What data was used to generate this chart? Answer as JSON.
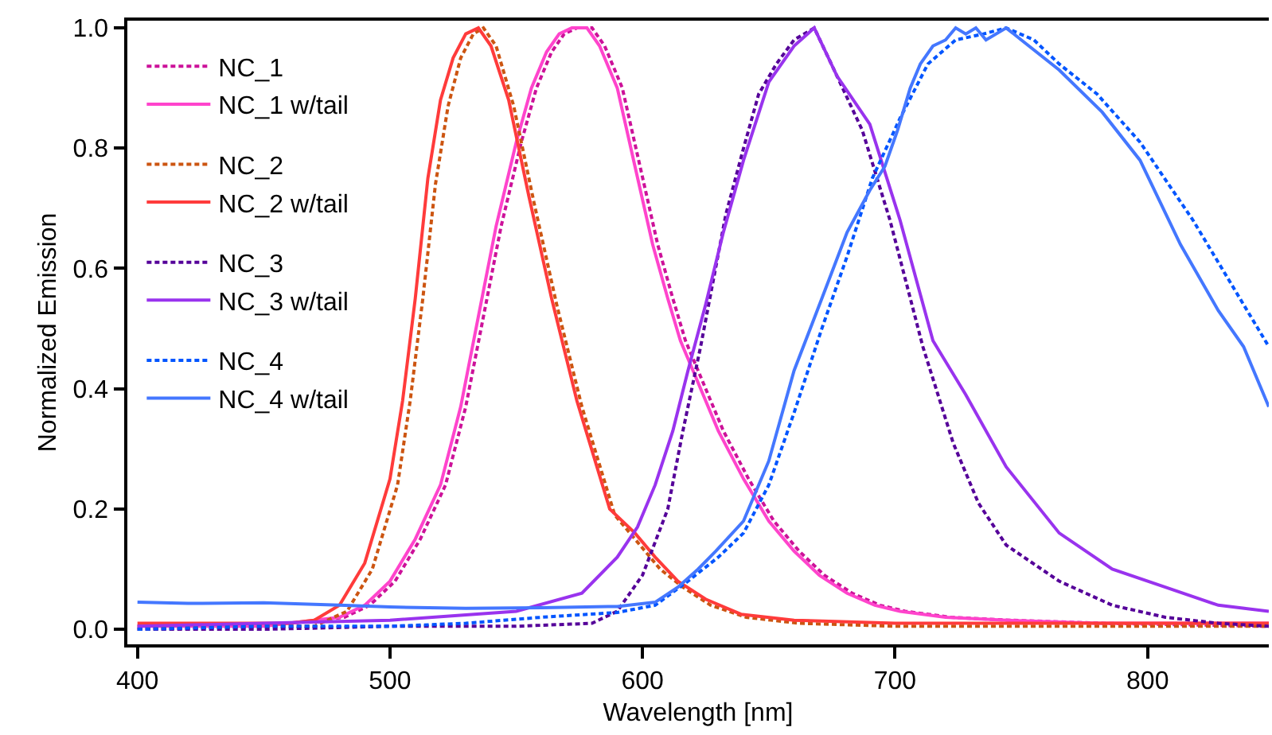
{
  "chart_data": {
    "type": "line",
    "xlabel": "Wavelength [nm]",
    "ylabel": "Normalized Emission",
    "xlim": [
      396,
      848
    ],
    "ylim": [
      -0.025,
      1.012
    ],
    "xticks": [
      400,
      500,
      600,
      700,
      800
    ],
    "yticks": [
      {
        "value": 0,
        "label": "0.0"
      },
      {
        "value": 0.2,
        "label": "0.2"
      },
      {
        "value": 0.4,
        "label": "0.4"
      },
      {
        "value": 0.6,
        "label": "0.6"
      },
      {
        "value": 0.8,
        "label": "0.8"
      },
      {
        "value": 1,
        "label": "1.0"
      }
    ],
    "legend": "top left",
    "marker": "none",
    "series": [
      {
        "name": "NC_1",
        "color": "#cc1199",
        "line_style": "dotted",
        "x": [
          400,
          450,
          482,
          492,
          502,
          512,
          522,
          530,
          537,
          544,
          552,
          558,
          564,
          569,
          574,
          580,
          585,
          592,
          599,
          606,
          612,
          617,
          623,
          632,
          642,
          652,
          662,
          672,
          683,
          694,
          704,
          722,
          746,
          782,
          848
        ],
        "values": [
          0.0,
          0.005,
          0.02,
          0.04,
          0.08,
          0.15,
          0.24,
          0.37,
          0.52,
          0.67,
          0.81,
          0.9,
          0.96,
          0.99,
          1.0,
          1.0,
          0.97,
          0.9,
          0.77,
          0.64,
          0.55,
          0.48,
          0.42,
          0.33,
          0.25,
          0.18,
          0.13,
          0.09,
          0.06,
          0.04,
          0.03,
          0.02,
          0.015,
          0.01,
          0.005
        ]
      },
      {
        "name": "NC_1 w/tail",
        "color": "#ff44cc",
        "line_style": "solid",
        "x": [
          400,
          450,
          480,
          490,
          500,
          510,
          520,
          528,
          535,
          542,
          550,
          556,
          562,
          567,
          572,
          578,
          583,
          590,
          597,
          604,
          610,
          615,
          621,
          630,
          640,
          650,
          660,
          670,
          681,
          692,
          702,
          720,
          744,
          780,
          848
        ],
        "values": [
          0.005,
          0.005,
          0.02,
          0.04,
          0.08,
          0.15,
          0.24,
          0.37,
          0.52,
          0.67,
          0.81,
          0.9,
          0.96,
          0.99,
          1.0,
          1.0,
          0.97,
          0.9,
          0.77,
          0.64,
          0.55,
          0.48,
          0.42,
          0.33,
          0.25,
          0.18,
          0.13,
          0.09,
          0.06,
          0.04,
          0.03,
          0.02,
          0.015,
          0.01,
          0.01
        ]
      },
      {
        "name": "NC_2",
        "color": "#cc5511",
        "line_style": "dotted",
        "x": [
          400,
          470,
          483,
          493,
          503,
          508,
          513,
          518,
          523,
          528,
          533,
          537,
          542,
          549,
          557,
          566,
          576,
          589,
          599,
          607,
          616,
          627,
          641,
          662,
          700,
          750,
          800,
          848
        ],
        "values": [
          0.005,
          0.005,
          0.03,
          0.1,
          0.24,
          0.38,
          0.55,
          0.74,
          0.87,
          0.95,
          0.99,
          1.0,
          0.97,
          0.87,
          0.71,
          0.54,
          0.37,
          0.19,
          0.14,
          0.1,
          0.07,
          0.04,
          0.02,
          0.01,
          0.005,
          0.005,
          0.005,
          0.005
        ]
      },
      {
        "name": "NC_2 w/tail",
        "color": "#ff3b3b",
        "line_style": "solid",
        "x": [
          400,
          430,
          460,
          470,
          480,
          490,
          500,
          505,
          510,
          515,
          520,
          525,
          530,
          535,
          540,
          547,
          555,
          564,
          574,
          587,
          597,
          605,
          614,
          625,
          639,
          660,
          700,
          750,
          800,
          848
        ],
        "values": [
          0.01,
          0.01,
          0.01,
          0.015,
          0.04,
          0.11,
          0.25,
          0.38,
          0.55,
          0.75,
          0.88,
          0.95,
          0.99,
          1.0,
          0.97,
          0.88,
          0.72,
          0.55,
          0.38,
          0.2,
          0.16,
          0.12,
          0.08,
          0.05,
          0.025,
          0.015,
          0.01,
          0.01,
          0.01,
          0.01
        ]
      },
      {
        "name": "NC_3",
        "color": "#550099",
        "line_style": "dotted",
        "x": [
          400,
          450,
          500,
          550,
          580,
          590,
          600,
          610,
          616,
          623,
          628,
          633,
          640,
          646,
          653,
          660,
          668,
          677,
          687,
          698,
          711,
          723,
          733,
          744,
          765,
          786,
          807,
          828,
          848
        ],
        "values": [
          0.0,
          0.0,
          0.005,
          0.005,
          0.01,
          0.03,
          0.09,
          0.2,
          0.33,
          0.47,
          0.58,
          0.69,
          0.8,
          0.89,
          0.94,
          0.98,
          1.0,
          0.92,
          0.83,
          0.68,
          0.47,
          0.31,
          0.21,
          0.14,
          0.08,
          0.04,
          0.02,
          0.01,
          0.005
        ]
      },
      {
        "name": "NC_3 w/tail",
        "color": "#9933ee",
        "line_style": "solid",
        "x": [
          400,
          450,
          500,
          550,
          576,
          590,
          598,
          605,
          612,
          618,
          625,
          632,
          640,
          650,
          660,
          668,
          677,
          690,
          702,
          715,
          728,
          744,
          765,
          786,
          807,
          828,
          848
        ],
        "values": [
          0.005,
          0.01,
          0.015,
          0.03,
          0.06,
          0.12,
          0.17,
          0.24,
          0.33,
          0.43,
          0.54,
          0.66,
          0.78,
          0.91,
          0.97,
          1.0,
          0.92,
          0.84,
          0.68,
          0.48,
          0.39,
          0.27,
          0.16,
          0.1,
          0.07,
          0.04,
          0.03
        ]
      },
      {
        "name": "NC_4",
        "color": "#0055ff",
        "line_style": "dotted",
        "x": [
          400,
          450,
          500,
          530,
          560,
          590,
          605,
          618,
          630,
          640,
          650,
          660,
          671,
          681,
          691,
          702,
          713,
          724,
          735,
          744,
          755,
          765,
          780,
          797,
          818,
          838,
          848
        ],
        "values": [
          0.0,
          0.005,
          0.005,
          0.01,
          0.02,
          0.028,
          0.04,
          0.08,
          0.12,
          0.16,
          0.24,
          0.36,
          0.5,
          0.62,
          0.75,
          0.85,
          0.94,
          0.98,
          0.99,
          1.0,
          0.98,
          0.94,
          0.89,
          0.81,
          0.68,
          0.54,
          0.47
        ]
      },
      {
        "name": "NC_4 w/tail",
        "color": "#4477ff",
        "line_style": "solid",
        "x": [
          400,
          420,
          450,
          480,
          500,
          530,
          560,
          590,
          605,
          614,
          622,
          629,
          640,
          650,
          660,
          671,
          681,
          690,
          696,
          701,
          706,
          710,
          715,
          720,
          724,
          728,
          732,
          736,
          744,
          750,
          765,
          782,
          797,
          813,
          828,
          838,
          848
        ],
        "values": [
          0.045,
          0.043,
          0.044,
          0.04,
          0.037,
          0.035,
          0.036,
          0.038,
          0.045,
          0.07,
          0.1,
          0.13,
          0.18,
          0.28,
          0.43,
          0.55,
          0.66,
          0.73,
          0.77,
          0.83,
          0.9,
          0.94,
          0.97,
          0.98,
          1.0,
          0.99,
          1.0,
          0.98,
          1.0,
          0.98,
          0.93,
          0.86,
          0.78,
          0.64,
          0.53,
          0.47,
          0.37
        ]
      }
    ]
  }
}
